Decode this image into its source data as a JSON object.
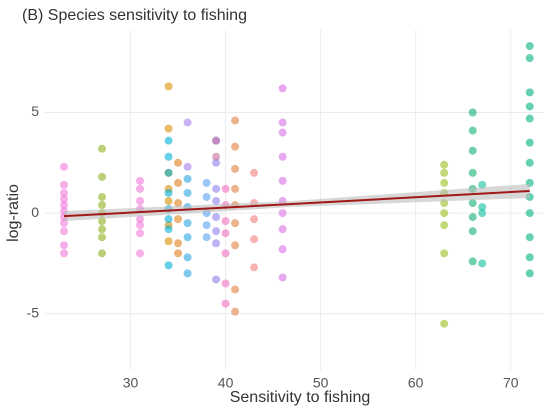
{
  "chart_data": {
    "type": "scatter",
    "title": "(B) Species sensitivity to fishing",
    "x_label": "Sensitivity to fishing",
    "y_label": "log-ratio",
    "xlim": [
      21,
      73.5
    ],
    "ylim": [
      -7.8,
      9.1
    ],
    "xticks": [
      30,
      40,
      50,
      60,
      70
    ],
    "yticks": [
      -5,
      0,
      5
    ],
    "grid": true,
    "series": [
      {
        "color": "#f07ad9",
        "x": [
          23,
          23,
          23,
          23,
          23,
          23,
          23,
          23,
          23,
          23,
          23
        ],
        "y": [
          2.3,
          1.4,
          1.0,
          0.7,
          0.4,
          0.1,
          -0.2,
          -0.5,
          -0.9,
          -1.6,
          -2.0
        ]
      },
      {
        "color": "#8fb020",
        "x": [
          27,
          27,
          27,
          27,
          27,
          27,
          27,
          27,
          27
        ],
        "y": [
          3.2,
          1.8,
          0.8,
          0.4,
          0,
          -0.4,
          -0.8,
          -1.2,
          -2.0
        ]
      },
      {
        "color": "#f07ad9",
        "x": [
          31,
          31,
          31,
          31,
          31,
          31,
          31,
          31
        ],
        "y": [
          1.6,
          1.2,
          0.6,
          0.2,
          -0.3,
          -0.6,
          -1.0,
          -2.0
        ]
      },
      {
        "color": "#d89000",
        "x": [
          34,
          34,
          34,
          34,
          34,
          34,
          34
        ],
        "y": [
          6.3,
          4.2,
          2.0,
          1.2,
          0.6,
          -0.6,
          -1.4
        ]
      },
      {
        "color": "#00b0d8",
        "x": [
          34,
          34,
          34,
          34,
          34,
          34,
          34,
          34
        ],
        "y": [
          3.6,
          2.8,
          2.0,
          1.0,
          0.2,
          -0.3,
          -0.8,
          -2.6
        ]
      },
      {
        "color": "#e08020",
        "x": [
          35,
          35,
          35,
          35,
          35,
          35
        ],
        "y": [
          2.5,
          1.5,
          0.5,
          -0.3,
          -1.5,
          -2.0
        ]
      },
      {
        "color": "#2aa6e0",
        "x": [
          36,
          36,
          36,
          36,
          36,
          36,
          36
        ],
        "y": [
          1.7,
          1.0,
          0.3,
          -0.5,
          -1.2,
          -2.2,
          -3.0
        ]
      },
      {
        "color": "#a77ef0",
        "x": [
          36,
          36
        ],
        "y": [
          4.5,
          2.3
        ]
      },
      {
        "color": "#5aa0f0",
        "x": [
          38,
          38,
          38,
          38,
          38
        ],
        "y": [
          1.5,
          0.8,
          0,
          -0.6,
          -1.2
        ]
      },
      {
        "color": "#9080f0",
        "x": [
          39,
          39,
          39,
          39,
          39,
          39,
          39,
          39
        ],
        "y": [
          3.6,
          2.5,
          1.2,
          0.6,
          -0.2,
          -0.9,
          -1.5,
          -3.3
        ]
      },
      {
        "color": "#c070a0",
        "x": [
          39,
          39
        ],
        "y": [
          3.6,
          2.8
        ]
      },
      {
        "color": "#f070c0",
        "x": [
          40,
          40,
          40,
          40,
          40,
          40,
          40
        ],
        "y": [
          1.2,
          0.4,
          -0.4,
          -1.0,
          -2.0,
          -3.5,
          -4.5
        ]
      },
      {
        "color": "#e08040",
        "x": [
          41,
          41,
          41,
          41,
          41,
          41,
          41,
          41,
          41
        ],
        "y": [
          4.6,
          3.3,
          2.2,
          1.2,
          0.4,
          -0.5,
          -1.6,
          -3.8,
          -4.9
        ]
      },
      {
        "color": "#f08080",
        "x": [
          43,
          43,
          43,
          43,
          43
        ],
        "y": [
          2.0,
          0.5,
          -0.3,
          -1.3,
          -2.7
        ]
      },
      {
        "color": "#d870e8",
        "x": [
          46,
          46,
          46,
          46,
          46,
          46,
          46,
          46,
          46,
          46
        ],
        "y": [
          6.2,
          4.5,
          4.0,
          2.8,
          1.6,
          0.6,
          0,
          -0.8,
          -1.8,
          -3.2
        ]
      },
      {
        "color": "#9ac020",
        "x": [
          63,
          63,
          63,
          63,
          63,
          63,
          63,
          63,
          63
        ],
        "y": [
          2.4,
          2.0,
          1.5,
          1.0,
          0.5,
          0,
          -0.6,
          -2.0,
          -5.5
        ]
      },
      {
        "color": "#10b070",
        "x": [
          66,
          66,
          66,
          66,
          66,
          66,
          66,
          66,
          66
        ],
        "y": [
          5.0,
          4.1,
          3.1,
          2.0,
          1.2,
          0.5,
          -0.2,
          -0.9,
          -2.4
        ]
      },
      {
        "color": "#10c0a0",
        "x": [
          67,
          67,
          67,
          67
        ],
        "y": [
          1.4,
          0.3,
          0,
          -2.5
        ]
      },
      {
        "color": "#00b080",
        "x": [
          72,
          72,
          72,
          72,
          72,
          72,
          72,
          72,
          72,
          72,
          72,
          72,
          72
        ],
        "y": [
          8.3,
          7.7,
          6.0,
          5.3,
          4.7,
          3.5,
          2.5,
          1.5,
          0.8,
          0,
          -1.2,
          -2.2,
          -3.0
        ]
      }
    ],
    "fit": {
      "color": "#a01818",
      "band_color": "#bdbdbd",
      "x": [
        23,
        47,
        72
      ],
      "y": [
        -0.15,
        0.45,
        1.1
      ],
      "lower": [
        -0.4,
        0.3,
        0.75
      ],
      "upper": [
        0.1,
        0.6,
        1.45
      ]
    }
  }
}
